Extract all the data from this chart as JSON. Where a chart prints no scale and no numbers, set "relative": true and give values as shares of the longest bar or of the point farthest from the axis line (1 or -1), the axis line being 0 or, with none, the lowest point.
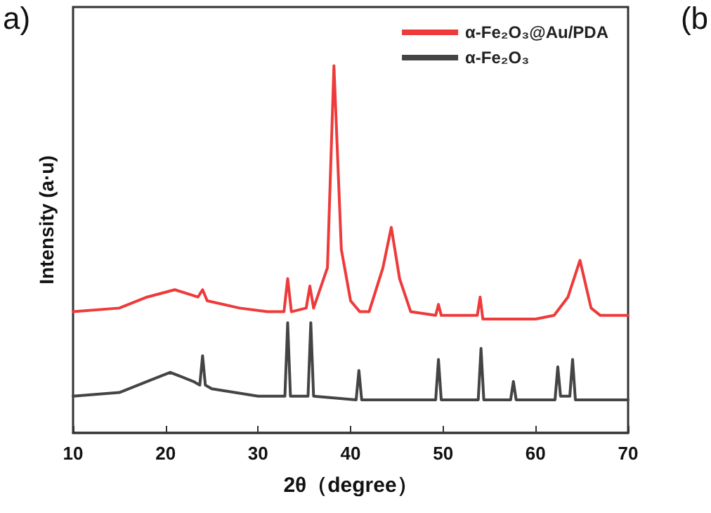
{
  "chart_data": {
    "type": "line",
    "relative": true,
    "xlabel": "2θ（degree）",
    "ylabel": "Intensity (a·u)",
    "xlim": [
      10,
      70
    ],
    "xticks": [
      10,
      20,
      30,
      40,
      50,
      60,
      70
    ],
    "tick_labels": "x",
    "grid": false,
    "legend": "top right",
    "marker": "none",
    "line_style": "solid",
    "annotations": [
      "a)",
      "(b"
    ],
    "series": [
      {
        "name": "α-Fe₂O₃@Au/PDA",
        "color": "#ee3a3a",
        "x": [
          10,
          15,
          18,
          21,
          23.5,
          24,
          24.5,
          28,
          31,
          32.8,
          33.2,
          33.6,
          35.2,
          35.6,
          36,
          37.5,
          38.2,
          39,
          40,
          41,
          42,
          43.5,
          44.4,
          45.3,
          46.5,
          49.2,
          49.5,
          49.8,
          53.7,
          54,
          54.3,
          55,
          60,
          62,
          63.5,
          64.8,
          66,
          67,
          70
        ],
        "values": [
          0.33,
          0.34,
          0.37,
          0.39,
          0.37,
          0.39,
          0.36,
          0.34,
          0.33,
          0.33,
          0.42,
          0.33,
          0.34,
          0.4,
          0.34,
          0.45,
          1.0,
          0.5,
          0.36,
          0.33,
          0.33,
          0.45,
          0.56,
          0.42,
          0.33,
          0.32,
          0.35,
          0.32,
          0.32,
          0.37,
          0.31,
          0.31,
          0.31,
          0.32,
          0.37,
          0.47,
          0.34,
          0.32,
          0.32
        ]
      },
      {
        "name": "α-Fe₂O₃",
        "color": "#444444",
        "x": [
          10,
          15,
          18,
          20.5,
          23,
          23.7,
          24,
          24.3,
          25,
          30,
          32.9,
          33.2,
          33.5,
          35.4,
          35.7,
          36.0,
          40.6,
          40.9,
          41.2,
          49.2,
          49.5,
          49.8,
          53.8,
          54.1,
          54.4,
          57.3,
          57.6,
          57.9,
          62.1,
          62.4,
          62.7,
          63.7,
          64.0,
          64.3,
          70
        ],
        "values": [
          0.1,
          0.11,
          0.14,
          0.165,
          0.14,
          0.13,
          0.21,
          0.13,
          0.12,
          0.1,
          0.1,
          0.3,
          0.1,
          0.1,
          0.3,
          0.1,
          0.09,
          0.17,
          0.09,
          0.09,
          0.2,
          0.09,
          0.09,
          0.23,
          0.09,
          0.09,
          0.14,
          0.09,
          0.09,
          0.18,
          0.1,
          0.1,
          0.2,
          0.09,
          0.09
        ]
      }
    ]
  }
}
